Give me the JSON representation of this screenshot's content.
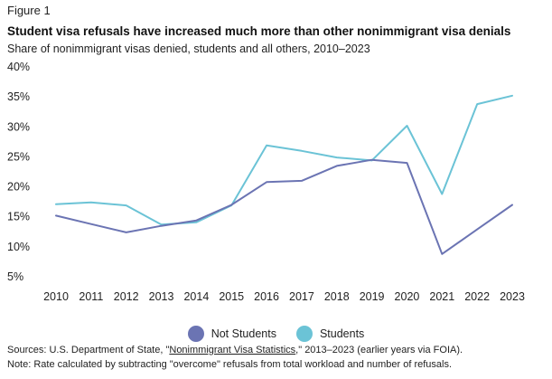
{
  "header": {
    "figure_label": "Figure 1",
    "title": "Student visa refusals have increased much more than other nonimmigrant visa denials",
    "subtitle": "Share of nonimmigrant visas denied, students and all others, 2010–2023"
  },
  "chart_data": {
    "type": "line",
    "title": "Student visa refusals have increased much more than other nonimmigrant visa denials",
    "subtitle": "Share of nonimmigrant visas denied, students and all others, 2010–2023",
    "xlabel": "",
    "ylabel": "",
    "x": [
      2010,
      2011,
      2012,
      2013,
      2014,
      2015,
      2016,
      2017,
      2018,
      2019,
      2020,
      2021,
      2022,
      2023
    ],
    "x_tick_labels": [
      "2010",
      "2011",
      "2012",
      "2013",
      "2014",
      "2015",
      "2016",
      "2017",
      "2018",
      "2019",
      "2020",
      "2021",
      "2022",
      "2023"
    ],
    "ylim": [
      5,
      40
    ],
    "y_ticks": [
      5,
      10,
      15,
      20,
      25,
      30,
      35,
      40
    ],
    "y_tick_labels": [
      "5%",
      "10%",
      "15%",
      "20%",
      "25%",
      "30%",
      "35%",
      "40%"
    ],
    "grid": false,
    "legend_position": "bottom-center",
    "series": [
      {
        "name": "Not Students",
        "color": "#6b74b3",
        "values": [
          15.2,
          13.8,
          12.4,
          13.5,
          14.4,
          17.0,
          20.8,
          21.0,
          23.5,
          24.5,
          24.0,
          8.8,
          12.9,
          17.0
        ]
      },
      {
        "name": "Students",
        "color": "#6bc3d6",
        "values": [
          17.1,
          17.4,
          16.9,
          13.7,
          14.1,
          16.9,
          26.9,
          26.0,
          24.9,
          24.4,
          30.2,
          18.8,
          33.8,
          35.2
        ]
      }
    ]
  },
  "legend": {
    "items": [
      {
        "label": "Not Students",
        "color": "#6b74b3"
      },
      {
        "label": "Students",
        "color": "#6bc3d6"
      }
    ]
  },
  "footer": {
    "source_prefix": "Sources: U.S. Department of State, \"",
    "source_link": "Nonimmigrant Visa Statistics",
    "source_suffix": ",\" 2013–2023 (earlier years via FOIA).",
    "note": "Note: Rate calculated by subtracting \"overcome\" refusals from total workload and number of refusals."
  }
}
